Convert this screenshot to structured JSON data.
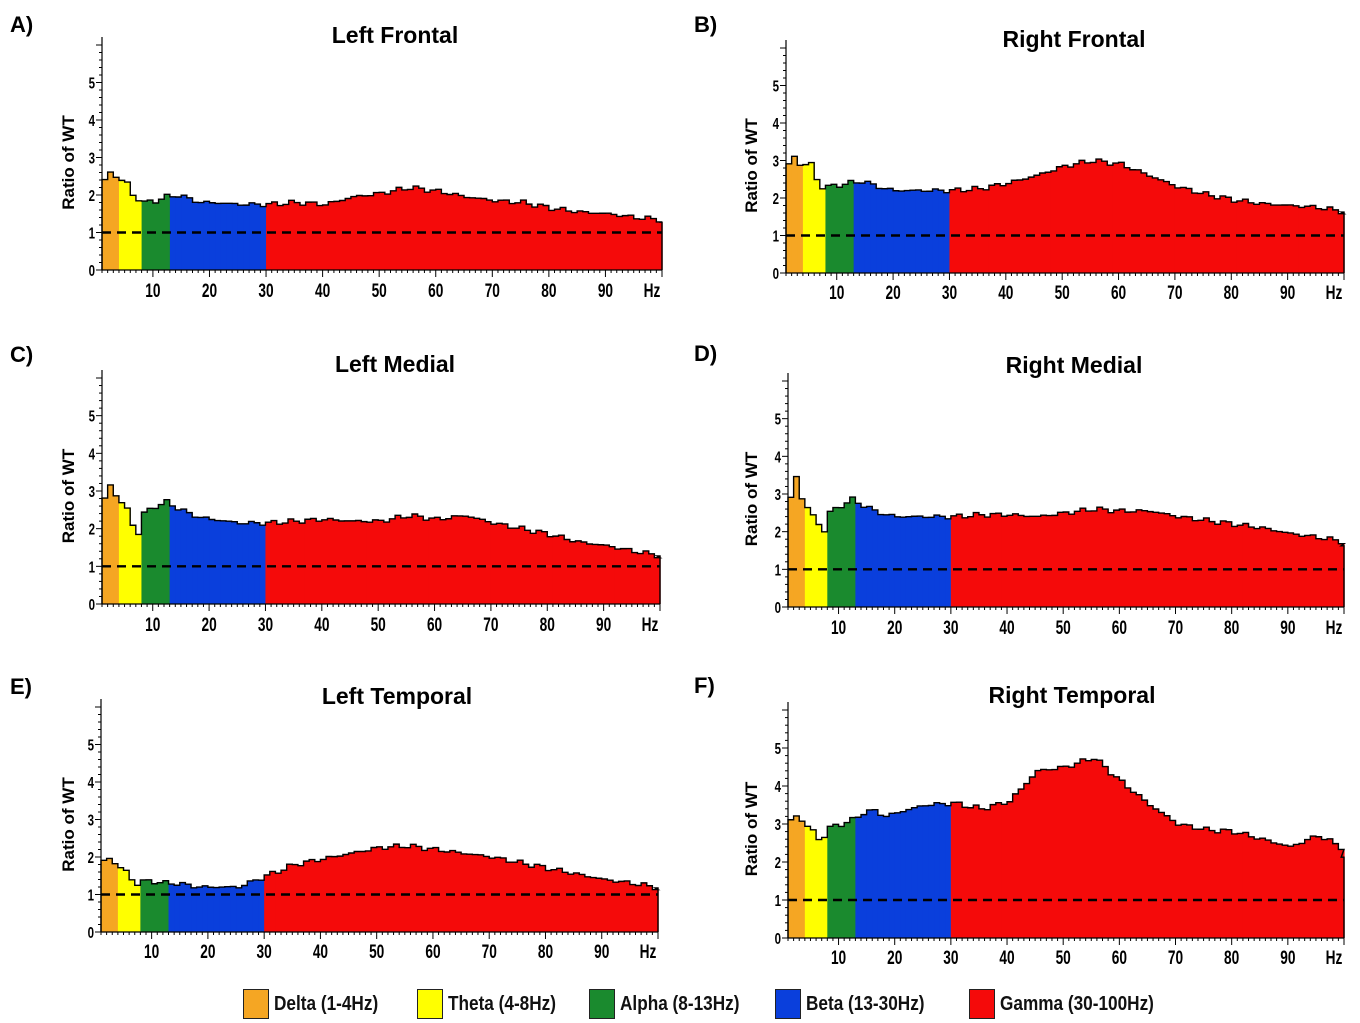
{
  "figure": {
    "legend": [
      {
        "label": "Delta (1-4Hz)",
        "color": "#F5A623"
      },
      {
        "label": "Theta (4-8Hz)",
        "color": "#FFFF00"
      },
      {
        "label": "Alpha (8-13Hz)",
        "color": "#1A8A2E"
      },
      {
        "label": "Beta (13-30Hz)",
        "color": "#0A3FDC"
      },
      {
        "label": "Gamma (30-100Hz)",
        "color": "#F50A0A"
      }
    ]
  },
  "chart_data": [
    {
      "panel": "A)",
      "type": "area",
      "title": "Left Frontal",
      "ylabel": "Ratio of WT",
      "xlabel": "Hz",
      "xlim": [
        1,
        100
      ],
      "ylim": [
        0,
        6
      ],
      "xticks": [
        "10",
        "20",
        "30",
        "40",
        "50",
        "60",
        "70",
        "80",
        "90"
      ],
      "yticks": [
        "0",
        "1",
        "2",
        "3",
        "4",
        "5"
      ],
      "reference_line": 1,
      "bands": [
        {
          "name": "Delta (1-4Hz)",
          "from": 1,
          "to": 4
        },
        {
          "name": "Theta (4-8Hz)",
          "from": 4,
          "to": 8
        },
        {
          "name": "Alpha (8-13Hz)",
          "from": 8,
          "to": 13
        },
        {
          "name": "Beta (13-30Hz)",
          "from": 13,
          "to": 30
        },
        {
          "name": "Gamma (30-100Hz)",
          "from": 30,
          "to": 100
        }
      ],
      "x": [
        1,
        2,
        3,
        5,
        6,
        7,
        8,
        10,
        12,
        14,
        16,
        18,
        20,
        25,
        30,
        35,
        40,
        45,
        50,
        55,
        60,
        65,
        70,
        75,
        80,
        85,
        90,
        95,
        99,
        100
      ],
      "y": [
        2.4,
        2.6,
        2.5,
        2.3,
        2.0,
        1.9,
        1.8,
        1.85,
        1.95,
        2.0,
        1.9,
        1.8,
        1.8,
        1.75,
        1.75,
        1.8,
        1.75,
        1.95,
        2.05,
        2.2,
        2.1,
        1.95,
        1.85,
        1.8,
        1.65,
        1.55,
        1.5,
        1.4,
        1.35,
        1.25
      ]
    },
    {
      "panel": "B)",
      "type": "area",
      "title": "Right Frontal",
      "ylabel": "Ratio of WT",
      "xlabel": "Hz",
      "xlim": [
        1,
        100
      ],
      "ylim": [
        0,
        6
      ],
      "xticks": [
        "10",
        "20",
        "30",
        "40",
        "50",
        "60",
        "70",
        "80",
        "90"
      ],
      "yticks": [
        "0",
        "1",
        "2",
        "3",
        "4",
        "5"
      ],
      "reference_line": 1,
      "bands": [
        {
          "name": "Delta (1-4Hz)",
          "from": 1,
          "to": 4
        },
        {
          "name": "Theta (4-8Hz)",
          "from": 4,
          "to": 8
        },
        {
          "name": "Alpha (8-13Hz)",
          "from": 8,
          "to": 13
        },
        {
          "name": "Beta (13-30Hz)",
          "from": 13,
          "to": 30
        },
        {
          "name": "Gamma (30-100Hz)",
          "from": 30,
          "to": 100
        }
      ],
      "x": [
        1,
        2,
        3,
        5,
        6,
        7,
        8,
        10,
        12,
        14,
        16,
        18,
        20,
        25,
        30,
        35,
        40,
        45,
        50,
        55,
        60,
        65,
        70,
        75,
        80,
        85,
        90,
        95,
        99,
        100
      ],
      "y": [
        2.9,
        3.1,
        2.9,
        2.9,
        2.5,
        2.3,
        2.3,
        2.35,
        2.4,
        2.45,
        2.35,
        2.25,
        2.2,
        2.2,
        2.2,
        2.25,
        2.4,
        2.6,
        2.85,
        3.0,
        2.9,
        2.6,
        2.3,
        2.1,
        1.95,
        1.85,
        1.8,
        1.75,
        1.65,
        1.6
      ]
    },
    {
      "panel": "C)",
      "type": "area",
      "title": "Left Medial",
      "ylabel": "Ratio of WT",
      "xlabel": "Hz",
      "xlim": [
        1,
        100
      ],
      "ylim": [
        0,
        6
      ],
      "xticks": [
        "10",
        "20",
        "30",
        "40",
        "50",
        "60",
        "70",
        "80",
        "90"
      ],
      "yticks": [
        "0",
        "1",
        "2",
        "3",
        "4",
        "5"
      ],
      "reference_line": 1,
      "bands": [
        {
          "name": "Delta (1-4Hz)",
          "from": 1,
          "to": 4
        },
        {
          "name": "Theta (4-8Hz)",
          "from": 4,
          "to": 8
        },
        {
          "name": "Alpha (8-13Hz)",
          "from": 8,
          "to": 13
        },
        {
          "name": "Beta (13-30Hz)",
          "from": 13,
          "to": 30
        },
        {
          "name": "Gamma (30-100Hz)",
          "from": 30,
          "to": 100
        }
      ],
      "x": [
        1,
        2,
        3,
        5,
        6,
        7,
        8,
        10,
        12,
        14,
        16,
        18,
        20,
        25,
        30,
        35,
        40,
        45,
        50,
        55,
        60,
        65,
        70,
        75,
        80,
        85,
        90,
        95,
        99,
        100
      ],
      "y": [
        2.8,
        3.15,
        2.9,
        2.5,
        2.1,
        1.9,
        2.4,
        2.6,
        2.7,
        2.55,
        2.4,
        2.3,
        2.25,
        2.15,
        2.15,
        2.2,
        2.25,
        2.2,
        2.2,
        2.35,
        2.25,
        2.35,
        2.15,
        2.0,
        1.85,
        1.65,
        1.55,
        1.4,
        1.3,
        1.25
      ]
    },
    {
      "panel": "D)",
      "type": "area",
      "title": "Right Medial",
      "ylabel": "Ratio of WT",
      "xlabel": "Hz",
      "xlim": [
        1,
        100
      ],
      "ylim": [
        0,
        6
      ],
      "xticks": [
        "10",
        "20",
        "30",
        "40",
        "50",
        "60",
        "70",
        "80",
        "90"
      ],
      "yticks": [
        "0",
        "1",
        "2",
        "3",
        "4",
        "5"
      ],
      "reference_line": 1,
      "bands": [
        {
          "name": "Delta (1-4Hz)",
          "from": 1,
          "to": 4
        },
        {
          "name": "Theta (4-8Hz)",
          "from": 4,
          "to": 8
        },
        {
          "name": "Alpha (8-13Hz)",
          "from": 8,
          "to": 13
        },
        {
          "name": "Beta (13-30Hz)",
          "from": 13,
          "to": 30
        },
        {
          "name": "Gamma (30-100Hz)",
          "from": 30,
          "to": 100
        }
      ],
      "x": [
        1,
        2,
        3,
        5,
        6,
        7,
        8,
        10,
        12,
        14,
        16,
        18,
        20,
        25,
        30,
        35,
        40,
        45,
        50,
        55,
        60,
        65,
        70,
        75,
        80,
        85,
        90,
        95,
        99,
        100
      ],
      "y": [
        2.9,
        3.45,
        2.9,
        2.4,
        2.2,
        2.05,
        2.5,
        2.7,
        2.85,
        2.7,
        2.55,
        2.45,
        2.4,
        2.4,
        2.4,
        2.45,
        2.45,
        2.4,
        2.5,
        2.6,
        2.55,
        2.55,
        2.4,
        2.3,
        2.2,
        2.1,
        1.95,
        1.85,
        1.75,
        1.6
      ]
    },
    {
      "panel": "E)",
      "type": "area",
      "title": "Left Temporal",
      "ylabel": "Ratio of WT",
      "xlabel": "Hz",
      "xlim": [
        1,
        100
      ],
      "ylim": [
        0,
        6
      ],
      "xticks": [
        "10",
        "20",
        "30",
        "40",
        "50",
        "60",
        "70",
        "80",
        "90"
      ],
      "yticks": [
        "0",
        "1",
        "2",
        "3",
        "4",
        "5"
      ],
      "reference_line": 1,
      "bands": [
        {
          "name": "Delta (1-4Hz)",
          "from": 1,
          "to": 4
        },
        {
          "name": "Theta (4-8Hz)",
          "from": 4,
          "to": 8
        },
        {
          "name": "Alpha (8-13Hz)",
          "from": 8,
          "to": 13
        },
        {
          "name": "Beta (13-30Hz)",
          "from": 13,
          "to": 30
        },
        {
          "name": "Gamma (30-100Hz)",
          "from": 30,
          "to": 100
        }
      ],
      "x": [
        1,
        2,
        3,
        5,
        6,
        7,
        8,
        10,
        12,
        14,
        16,
        18,
        20,
        25,
        30,
        35,
        40,
        45,
        50,
        55,
        60,
        65,
        70,
        75,
        80,
        85,
        90,
        95,
        99,
        100
      ],
      "y": [
        1.9,
        1.95,
        1.85,
        1.6,
        1.4,
        1.3,
        1.35,
        1.35,
        1.3,
        1.3,
        1.25,
        1.2,
        1.2,
        1.2,
        1.5,
        1.8,
        1.95,
        2.1,
        2.25,
        2.3,
        2.2,
        2.1,
        2.0,
        1.85,
        1.7,
        1.55,
        1.4,
        1.3,
        1.2,
        1.15
      ]
    },
    {
      "panel": "F)",
      "type": "area",
      "title": "Right Temporal",
      "ylabel": "Ratio of WT",
      "xlabel": "Hz",
      "xlim": [
        1,
        100
      ],
      "ylim": [
        0,
        6
      ],
      "xticks": [
        "10",
        "20",
        "30",
        "40",
        "50",
        "60",
        "70",
        "80",
        "90"
      ],
      "yticks": [
        "0",
        "1",
        "2",
        "3",
        "4",
        "5"
      ],
      "reference_line": 1,
      "bands": [
        {
          "name": "Delta (1-4Hz)",
          "from": 1,
          "to": 4
        },
        {
          "name": "Theta (4-8Hz)",
          "from": 4,
          "to": 8
        },
        {
          "name": "Alpha (8-13Hz)",
          "from": 8,
          "to": 13
        },
        {
          "name": "Beta (13-30Hz)",
          "from": 13,
          "to": 30
        },
        {
          "name": "Gamma (30-100Hz)",
          "from": 30,
          "to": 100
        }
      ],
      "x": [
        1,
        2,
        3,
        5,
        6,
        7,
        8,
        10,
        12,
        14,
        16,
        18,
        20,
        25,
        30,
        35,
        40,
        45,
        50,
        55,
        60,
        65,
        70,
        75,
        80,
        85,
        90,
        95,
        99,
        100
      ],
      "y": [
        3.1,
        3.2,
        3.1,
        2.8,
        2.6,
        2.7,
        2.9,
        3.0,
        3.1,
        3.3,
        3.35,
        3.2,
        3.3,
        3.5,
        3.55,
        3.4,
        3.6,
        4.4,
        4.5,
        4.75,
        4.1,
        3.5,
        3.0,
        2.85,
        2.8,
        2.6,
        2.4,
        2.7,
        2.4,
        2.1
      ]
    }
  ]
}
